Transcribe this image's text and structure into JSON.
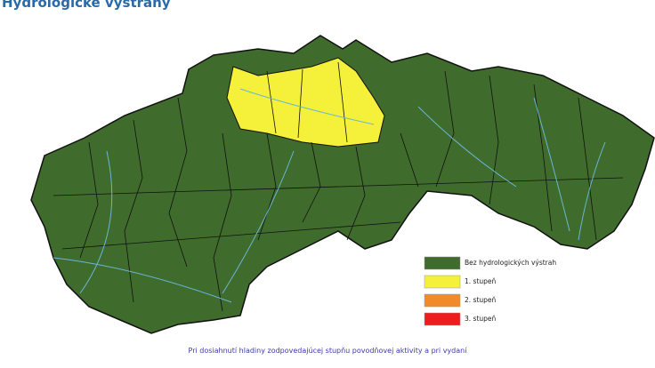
{
  "header": {
    "title": "Hydrologické výstrahy"
  },
  "legend": [
    {
      "label": "Bez hydrologických výstrah",
      "color": "#3f6b2c"
    },
    {
      "label": "1. stupeň",
      "color": "#f5f03a"
    },
    {
      "label": "2. stupeň",
      "color": "#f08a2a"
    },
    {
      "label": "3. stupeň",
      "color": "#ee1c1c"
    }
  ],
  "footer": {
    "note": "Pri dosiahnutí hladiny zodpovedajúcej stupňu povodňovej aktivity a pri vydaní"
  }
}
